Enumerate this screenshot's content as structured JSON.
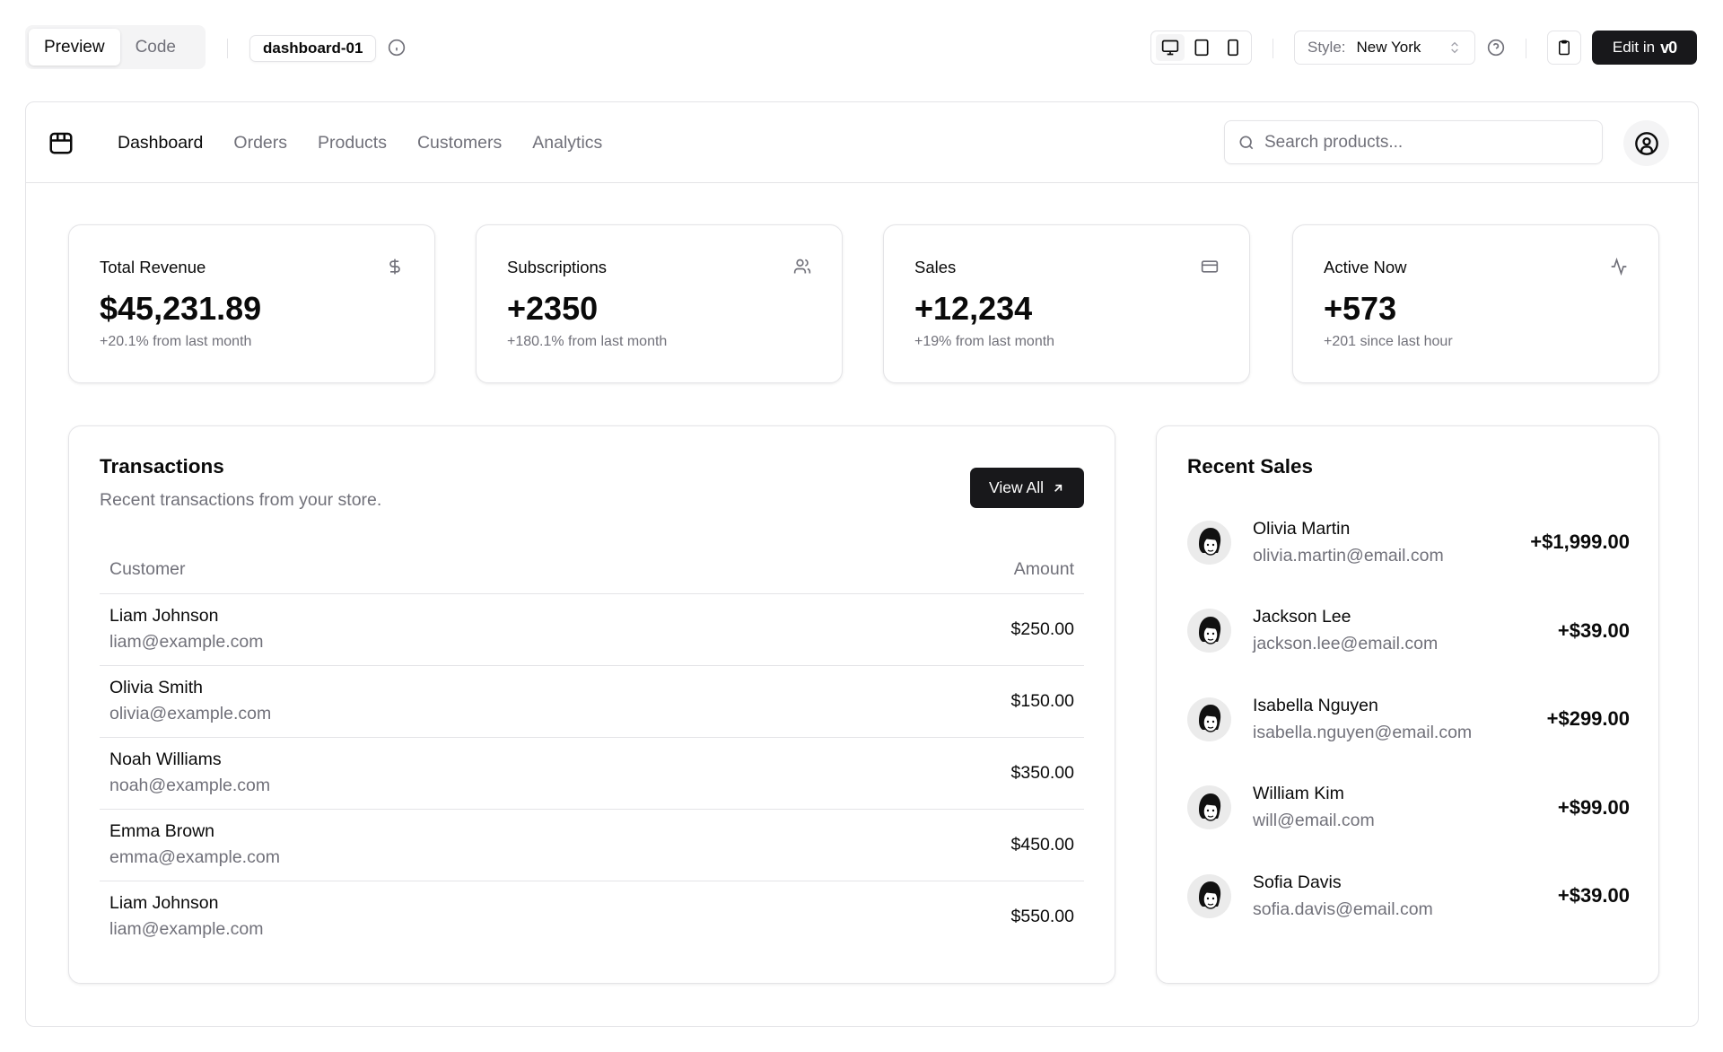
{
  "toolbar": {
    "tabs": [
      {
        "label": "Preview",
        "active": true
      },
      {
        "label": "Code",
        "active": false
      }
    ],
    "block_name": "dashboard-01",
    "style_label": "Style:",
    "style_value": "New York",
    "edit_label": "Edit in",
    "edit_logo": "v0"
  },
  "header": {
    "logo_icon": "package-icon",
    "nav": [
      {
        "label": "Dashboard",
        "active": true
      },
      {
        "label": "Orders",
        "active": false
      },
      {
        "label": "Products",
        "active": false
      },
      {
        "label": "Customers",
        "active": false
      },
      {
        "label": "Analytics",
        "active": false
      }
    ],
    "search_placeholder": "Search products..."
  },
  "stats": [
    {
      "title": "Total Revenue",
      "value": "$45,231.89",
      "sub": "+20.1% from last month",
      "icon": "dollar-icon"
    },
    {
      "title": "Subscriptions",
      "value": "+2350",
      "sub": "+180.1% from last month",
      "icon": "users-icon"
    },
    {
      "title": "Sales",
      "value": "+12,234",
      "sub": "+19% from last month",
      "icon": "credit-card-icon"
    },
    {
      "title": "Active Now",
      "value": "+573",
      "sub": "+201 since last hour",
      "icon": "activity-icon"
    }
  ],
  "transactions": {
    "title": "Transactions",
    "description": "Recent transactions from your store.",
    "view_all": "View All",
    "columns": [
      "Customer",
      "Amount"
    ],
    "rows": [
      {
        "name": "Liam Johnson",
        "email": "liam@example.com",
        "amount": "$250.00"
      },
      {
        "name": "Olivia Smith",
        "email": "olivia@example.com",
        "amount": "$150.00"
      },
      {
        "name": "Noah Williams",
        "email": "noah@example.com",
        "amount": "$350.00"
      },
      {
        "name": "Emma Brown",
        "email": "emma@example.com",
        "amount": "$450.00"
      },
      {
        "name": "Liam Johnson",
        "email": "liam@example.com",
        "amount": "$550.00"
      }
    ]
  },
  "recent_sales": {
    "title": "Recent Sales",
    "items": [
      {
        "name": "Olivia Martin",
        "email": "olivia.martin@email.com",
        "amount": "+$1,999.00"
      },
      {
        "name": "Jackson Lee",
        "email": "jackson.lee@email.com",
        "amount": "+$39.00"
      },
      {
        "name": "Isabella Nguyen",
        "email": "isabella.nguyen@email.com",
        "amount": "+$299.00"
      },
      {
        "name": "William Kim",
        "email": "will@email.com",
        "amount": "+$99.00"
      },
      {
        "name": "Sofia Davis",
        "email": "sofia.davis@email.com",
        "amount": "+$39.00"
      }
    ]
  },
  "colors": {
    "primary": "#18181b",
    "muted_text": "#71717a",
    "border": "#e4e4e7"
  }
}
